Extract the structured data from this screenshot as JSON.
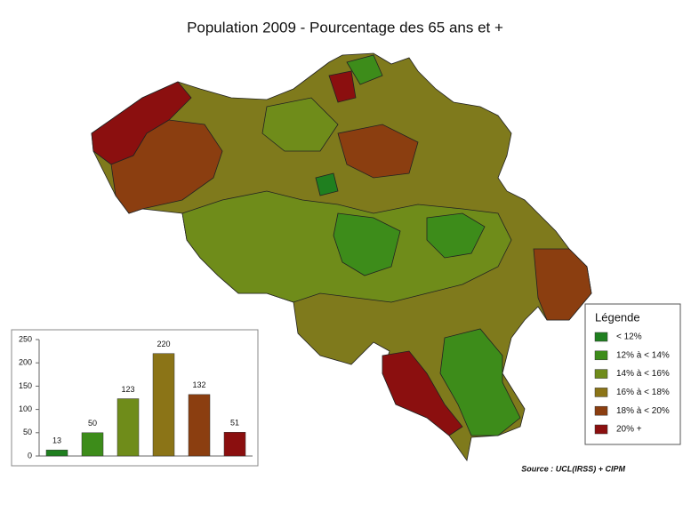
{
  "title": "Population 2009 - Pourcentage des 65 ans et +",
  "legend": {
    "title": "Légende",
    "items": [
      {
        "label": "< 12%",
        "color": "#1f7f1f"
      },
      {
        "label": "12% à < 14%",
        "color": "#3d8c1a"
      },
      {
        "label": "14% à < 16%",
        "color": "#6f8c1a"
      },
      {
        "label": "16% à < 18%",
        "color": "#8b7417"
      },
      {
        "label": "18% à < 20%",
        "color": "#8b3e10"
      },
      {
        "label": "20% +",
        "color": "#8b0f0f"
      }
    ]
  },
  "source": "Source : UCL(IRSS) + CIPM",
  "chart_data": {
    "type": "bar",
    "categories": [
      null,
      null,
      null,
      null,
      null,
      null
    ],
    "values": [
      13,
      50,
      123,
      220,
      132,
      51
    ],
    "colors": [
      "#1f7f1f",
      "#3d8c1a",
      "#6f8c1a",
      "#8b7417",
      "#8b3e10",
      "#8b0f0f"
    ],
    "ylim": [
      0,
      250
    ],
    "yticks": [
      0,
      50,
      100,
      150,
      200,
      250
    ]
  }
}
